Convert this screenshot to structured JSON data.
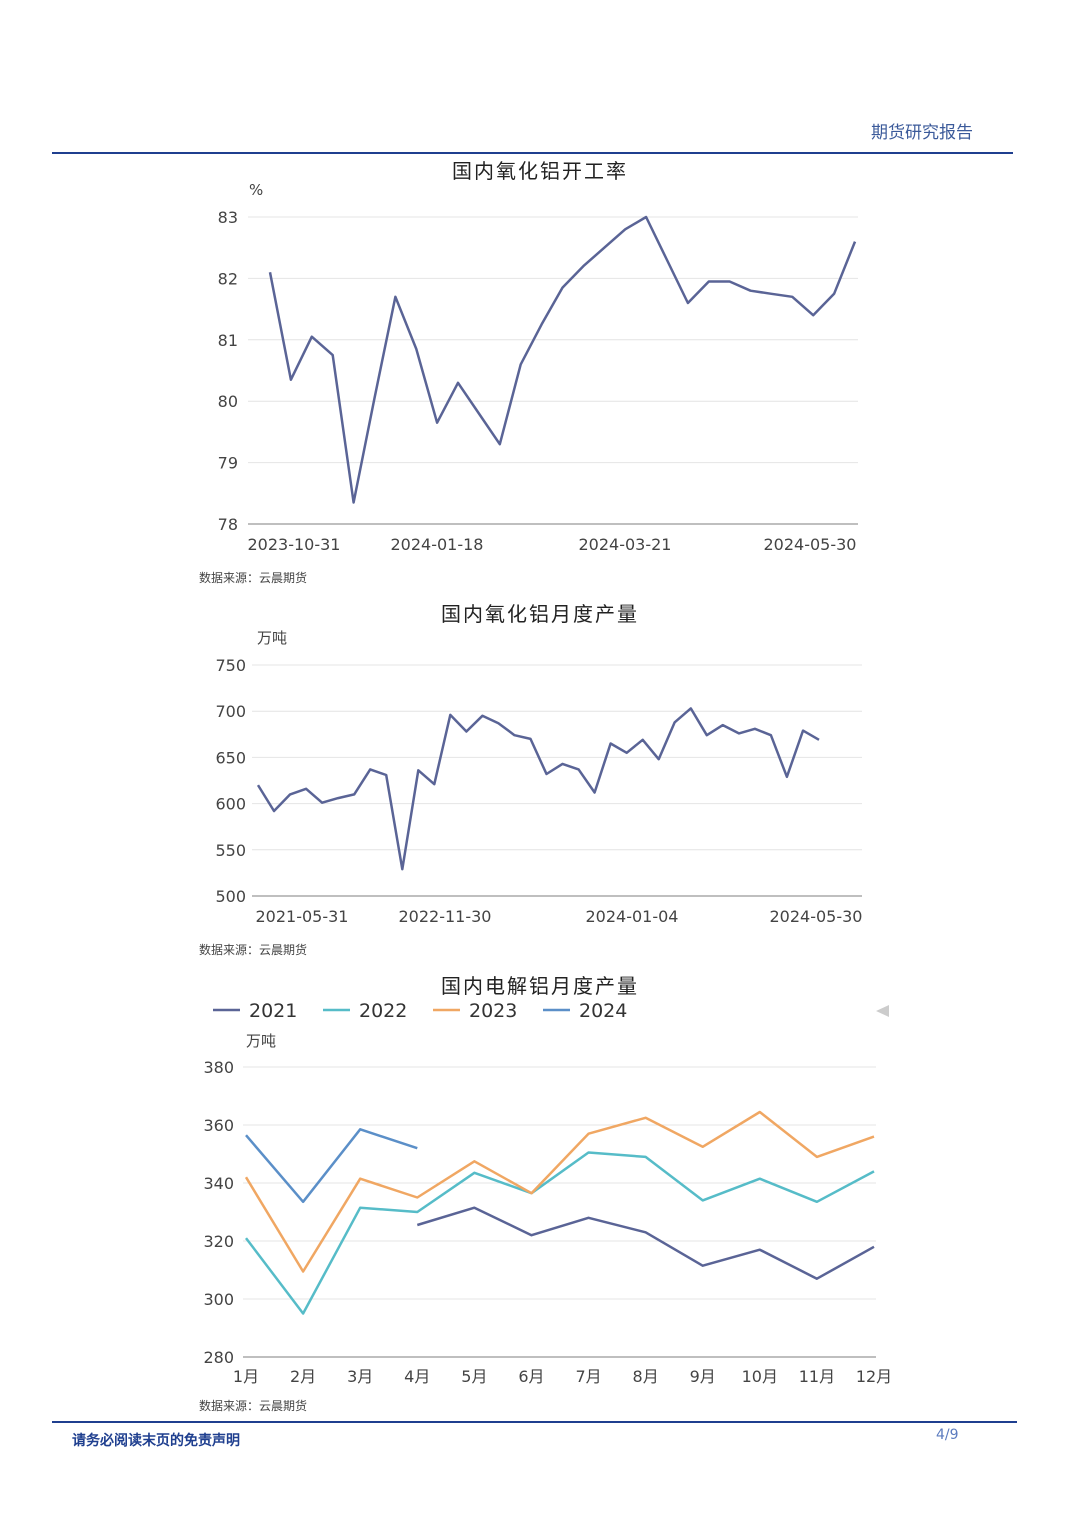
{
  "header": {
    "title": "期货研究报告"
  },
  "footer": {
    "disclaimer": "请务必阅读末页的免责声明",
    "page": "4/9"
  },
  "sources": [
    "数据来源：云晨期货",
    "数据来源：云晨期货",
    "数据来源：云晨期货"
  ],
  "colors": {
    "navy": "#5a6496",
    "teal": "#56bcc8",
    "orange": "#f0a763",
    "blue": "#5b8fc8",
    "rule": "#1f3f8f"
  },
  "legend_icon": "left-arrow-icon",
  "chart_data": [
    {
      "type": "line",
      "title": "国内氧化铝开工率",
      "ylabel": "%",
      "ylim": [
        78,
        83
      ],
      "yticks": [
        78,
        79,
        80,
        81,
        82,
        83
      ],
      "xtick_labels": [
        "2023-10-31",
        "2024-01-18",
        "2024-03-21",
        "2024-05-30"
      ],
      "series": [
        {
          "values": [
            82.1,
            80.35,
            81.05,
            80.75,
            78.35,
            80.05,
            81.7,
            80.85,
            79.65,
            80.3,
            79.8,
            79.3,
            80.6,
            81.25,
            81.85,
            82.2,
            82.5,
            82.8,
            83.0,
            82.3,
            81.6,
            81.95,
            81.95,
            81.8,
            81.75,
            81.7,
            81.4,
            81.75,
            82.6
          ]
        }
      ]
    },
    {
      "type": "line",
      "title": "国内氧化铝月度产量",
      "ylabel": "万吨",
      "ylim": [
        500,
        750
      ],
      "yticks": [
        500,
        550,
        600,
        650,
        700,
        750
      ],
      "xtick_labels": [
        "2021-05-31",
        "2022-11-30",
        "2024-01-04",
        "2024-05-30"
      ],
      "series": [
        {
          "values": [
            620,
            592,
            610,
            616,
            601,
            606,
            610,
            637,
            631,
            529,
            636,
            621,
            696,
            678,
            695,
            687,
            674,
            670,
            632,
            643,
            637,
            612,
            665,
            655,
            669,
            648,
            688,
            703,
            674,
            685,
            676,
            681,
            674,
            629,
            679,
            669
          ]
        }
      ]
    },
    {
      "type": "line",
      "title": "国内电解铝月度产量",
      "ylabel": "万吨",
      "ylim": [
        280,
        380
      ],
      "yticks": [
        280,
        300,
        320,
        340,
        360,
        380
      ],
      "categories": [
        "1月",
        "2月",
        "3月",
        "4月",
        "5月",
        "6月",
        "7月",
        "8月",
        "9月",
        "10月",
        "11月",
        "12月"
      ],
      "series": [
        {
          "name": "2021",
          "values": [
            null,
            null,
            null,
            325.5,
            331.5,
            322,
            328,
            323,
            311.5,
            317,
            307,
            318
          ]
        },
        {
          "name": "2022",
          "values": [
            321,
            295,
            331.5,
            330,
            343.5,
            336.5,
            350.5,
            349,
            334,
            341.5,
            333.5,
            344
          ]
        },
        {
          "name": "2023",
          "values": [
            342,
            309.5,
            341.5,
            335,
            347.5,
            336.5,
            357,
            362.5,
            352.5,
            364.5,
            349,
            356
          ]
        },
        {
          "name": "2024",
          "values": [
            356.5,
            333.5,
            358.5,
            352,
            null,
            null,
            null,
            null,
            null,
            null,
            null,
            null
          ]
        }
      ]
    }
  ]
}
